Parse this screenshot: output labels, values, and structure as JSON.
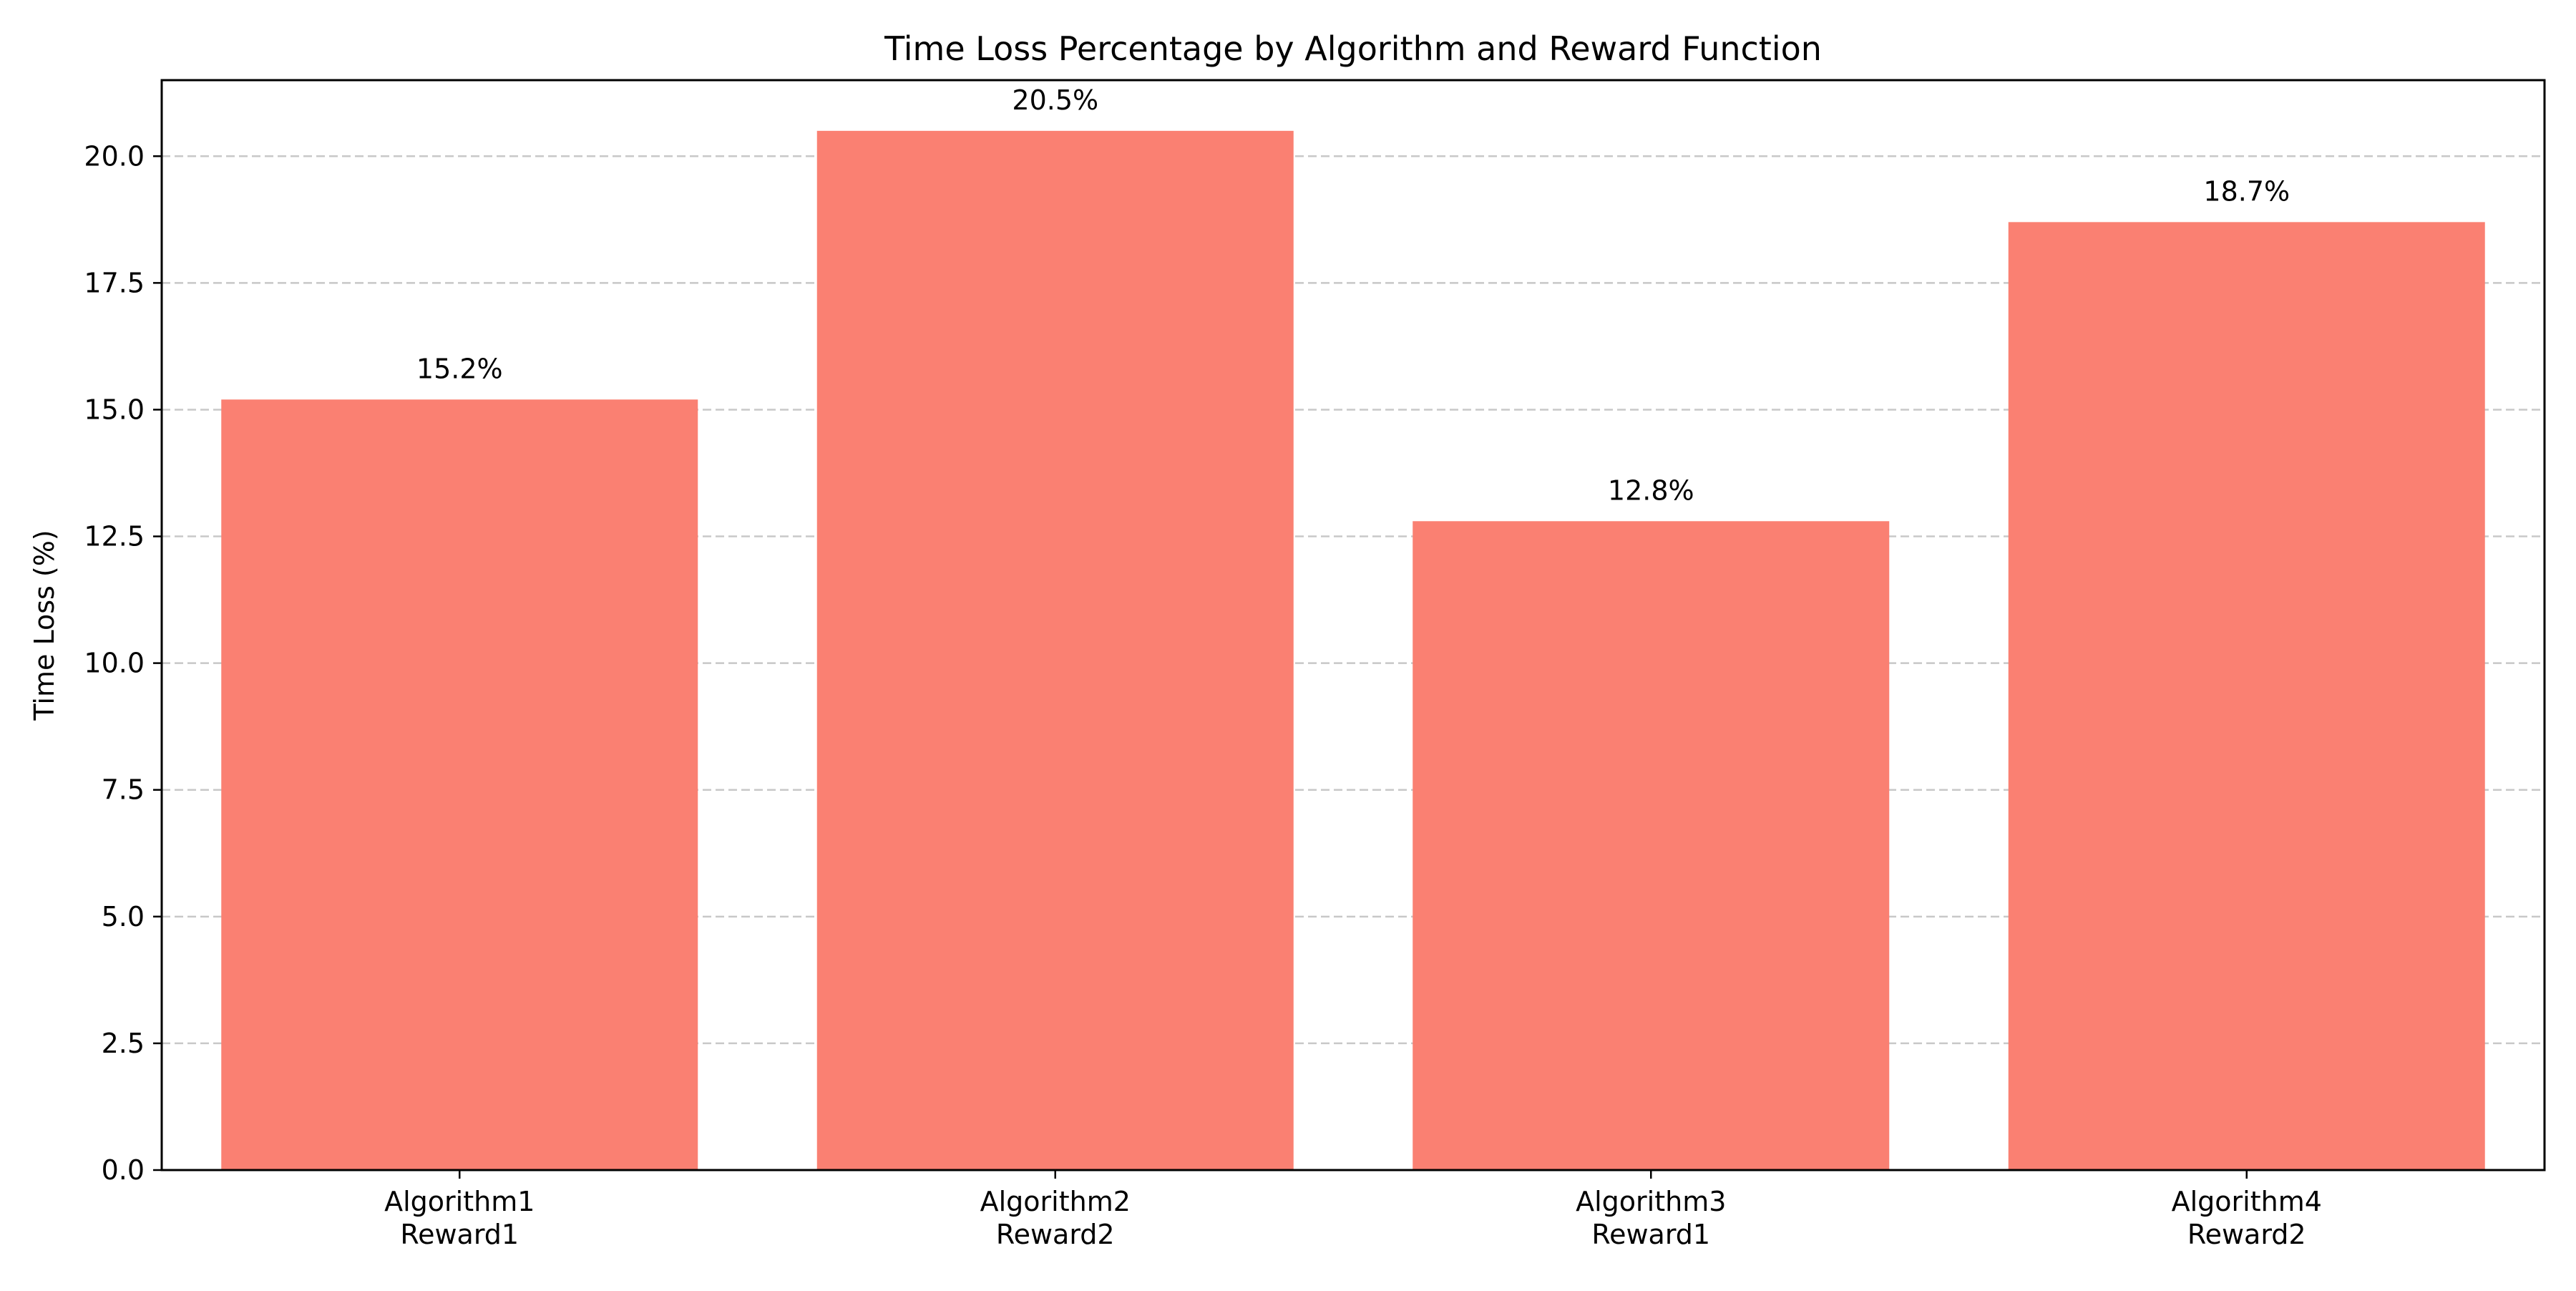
{
  "chart_data": {
    "type": "bar",
    "title": "Time Loss Percentage by Algorithm and Reward Function",
    "xlabel": "",
    "ylabel": "Time Loss (%)",
    "categories": [
      [
        "Algorithm1",
        "Reward1"
      ],
      [
        "Algorithm2",
        "Reward2"
      ],
      [
        "Algorithm3",
        "Reward1"
      ],
      [
        "Algorithm4",
        "Reward2"
      ]
    ],
    "values": [
      15.2,
      20.5,
      12.8,
      18.7
    ],
    "data_labels": [
      "15.2%",
      "20.5%",
      "12.8%",
      "18.7%"
    ],
    "ylim": [
      0,
      21.5
    ],
    "yticks": [
      0.0,
      2.5,
      5.0,
      7.5,
      10.0,
      12.5,
      15.0,
      17.5,
      20.0
    ],
    "ytick_labels": [
      "0.0",
      "2.5",
      "5.0",
      "7.5",
      "10.0",
      "12.5",
      "15.0",
      "17.5",
      "20.0"
    ],
    "grid": "y-dashed",
    "bar_color": "#FA8072",
    "grid_color": "#C8C8C8"
  }
}
